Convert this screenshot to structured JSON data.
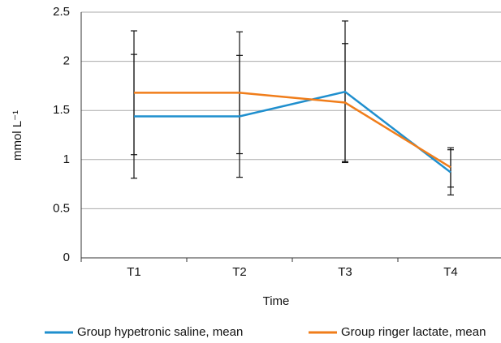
{
  "chart_data": {
    "type": "line",
    "x_label": "Time",
    "y_label": "mmol L⁻¹",
    "categories": [
      "T1",
      "T2",
      "T3",
      "T4"
    ],
    "series": [
      {
        "name": "Group hypetronic saline, mean",
        "color": "#1f8fce",
        "values": [
          1.44,
          1.44,
          1.69,
          0.87
        ],
        "errors": [
          0.63,
          0.62,
          0.72,
          0.23
        ]
      },
      {
        "name": "Group ringer lactate, mean",
        "color": "#f07d1a",
        "values": [
          1.68,
          1.68,
          1.58,
          0.92
        ],
        "errors": [
          0.63,
          0.62,
          0.6,
          0.2
        ]
      }
    ],
    "ylim": [
      0,
      2.5
    ],
    "yticks": [
      0,
      0.5,
      1,
      1.5,
      2,
      2.5
    ],
    "grid": true,
    "legend": "bottom"
  }
}
